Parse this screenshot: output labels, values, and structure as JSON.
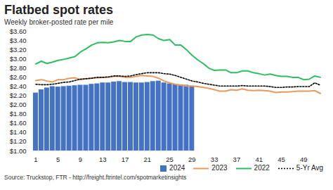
{
  "chart_data": {
    "type": "bar",
    "title": "Flatbed spot rates",
    "subtitle": "Weekly broker-posted rate per mile",
    "source": "Source: Truckstop, FTR - http://freight.ftrintel.com/spotmarketinsights",
    "categories": [
      1,
      null,
      null,
      null,
      5,
      null,
      null,
      null,
      9,
      null,
      null,
      null,
      13,
      null,
      null,
      null,
      17,
      null,
      null,
      null,
      21,
      null,
      null,
      null,
      25,
      null,
      null,
      null,
      29,
      null,
      null,
      null,
      33,
      null,
      null,
      null,
      37,
      null,
      null,
      null,
      41,
      null,
      null,
      null,
      45,
      null,
      null,
      null,
      49,
      null,
      null,
      null
    ],
    "series": [
      {
        "name": "2024",
        "type": "bar",
        "color": "#4472C4",
        "values": [
          2.26,
          2.33,
          2.37,
          2.4,
          2.39,
          2.4,
          2.41,
          2.42,
          2.43,
          2.43,
          2.45,
          2.46,
          2.48,
          2.48,
          2.5,
          2.51,
          2.49,
          2.49,
          2.48,
          2.48,
          2.49,
          2.51,
          2.52,
          2.48,
          2.46,
          2.45,
          2.44,
          2.43,
          2.41,
          null,
          null,
          null,
          null,
          null,
          null,
          null,
          null,
          null,
          null,
          null,
          null,
          null,
          null,
          null,
          null,
          null,
          null,
          null,
          null,
          null,
          null,
          null
        ]
      },
      {
        "name": "2023",
        "type": "line",
        "color": "#E89A5E",
        "line_style": "solid",
        "values": [
          2.53,
          2.55,
          2.52,
          2.5,
          2.55,
          2.55,
          2.58,
          2.59,
          2.55,
          2.57,
          2.58,
          2.59,
          2.6,
          2.6,
          2.62,
          2.62,
          2.6,
          2.6,
          2.62,
          2.64,
          2.63,
          2.62,
          2.58,
          2.52,
          2.48,
          2.45,
          2.43,
          2.41,
          2.41,
          2.4,
          2.38,
          2.36,
          2.33,
          2.3,
          2.3,
          2.33,
          2.32,
          2.35,
          2.32,
          2.31,
          2.32,
          2.31,
          2.3,
          2.27,
          2.28,
          2.28,
          2.29,
          2.3,
          2.3,
          2.3,
          2.31,
          2.25
        ]
      },
      {
        "name": "2022",
        "type": "line",
        "color": "#2DBE60",
        "line_style": "solid",
        "values": [
          2.89,
          2.95,
          2.9,
          2.93,
          2.97,
          2.99,
          3.02,
          3.05,
          3.15,
          3.22,
          3.3,
          3.35,
          3.36,
          3.35,
          3.37,
          3.4,
          3.38,
          3.38,
          3.48,
          3.52,
          3.53,
          3.52,
          3.44,
          3.4,
          3.42,
          3.3,
          3.3,
          3.2,
          3.08,
          2.98,
          2.9,
          2.8,
          2.75,
          2.76,
          2.76,
          2.7,
          2.7,
          2.74,
          2.74,
          2.7,
          2.68,
          2.65,
          2.67,
          2.64,
          2.62,
          2.62,
          2.6,
          2.6,
          2.55,
          2.56,
          2.63,
          2.6
        ]
      },
      {
        "name": "5-Yr Avg",
        "type": "line",
        "color": "#000000",
        "line_style": "dotted",
        "values": [
          2.45,
          2.44,
          2.44,
          2.45,
          2.47,
          2.49,
          2.5,
          2.53,
          2.56,
          2.57,
          2.58,
          2.6,
          2.6,
          2.61,
          2.63,
          2.63,
          2.62,
          2.63,
          2.66,
          2.68,
          2.7,
          2.7,
          2.7,
          2.68,
          2.67,
          2.64,
          2.6,
          2.56,
          2.52,
          2.5,
          2.47,
          2.45,
          2.43,
          2.41,
          2.41,
          2.41,
          2.41,
          2.42,
          2.41,
          2.41,
          2.41,
          2.41,
          2.4,
          2.38,
          2.38,
          2.39,
          2.39,
          2.4,
          2.4,
          2.4,
          2.48,
          2.43
        ]
      }
    ],
    "ylim": [
      1.0,
      3.6
    ],
    "yticks": [
      {
        "value": 1.0,
        "label": "$1.00"
      },
      {
        "value": 1.2,
        "label": "$1.20"
      },
      {
        "value": 1.4,
        "label": "$1.40"
      },
      {
        "value": 1.6,
        "label": "$1.60"
      },
      {
        "value": 1.8,
        "label": "$1.80"
      },
      {
        "value": 2.0,
        "label": "$2.00"
      },
      {
        "value": 2.2,
        "label": "$2.20"
      },
      {
        "value": 2.4,
        "label": "$2.40"
      },
      {
        "value": 2.6,
        "label": "$2.60"
      },
      {
        "value": 2.8,
        "label": "$2.80"
      },
      {
        "value": 3.0,
        "label": "$3.00"
      },
      {
        "value": 3.2,
        "label": "$3.20"
      },
      {
        "value": 3.4,
        "label": "$3.40"
      },
      {
        "value": 3.6,
        "label": "$3.60"
      }
    ],
    "grid": false,
    "legend": "bottom"
  }
}
